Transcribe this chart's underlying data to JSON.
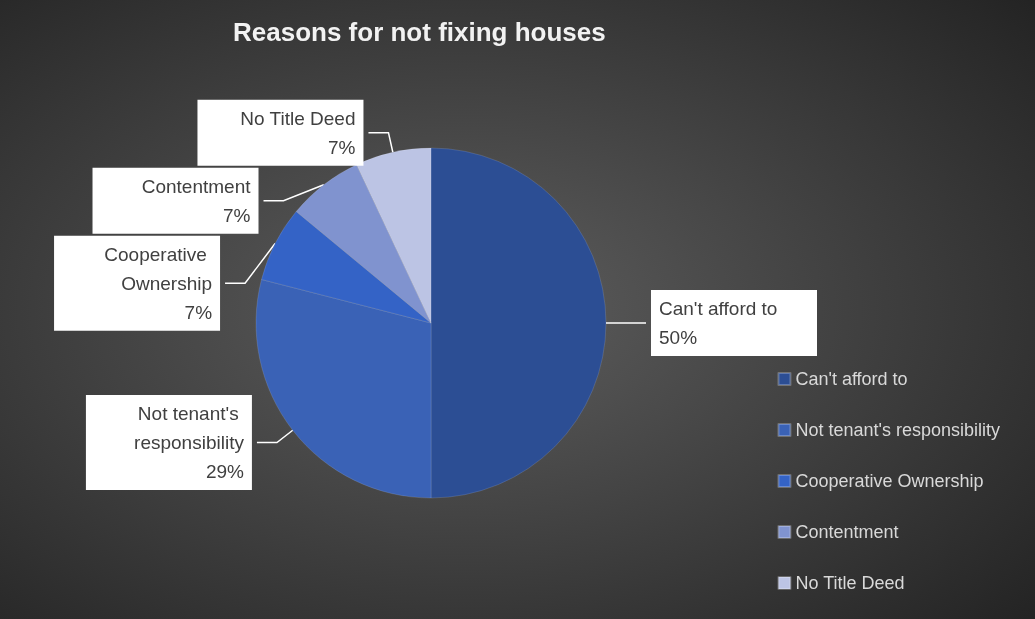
{
  "chart_data": {
    "type": "pie",
    "title": "Reasons for not fixing houses",
    "categories": [
      "Can't afford to",
      "Not tenant's responsibility",
      "Cooperative Ownership",
      "Contentment",
      "No Title Deed"
    ],
    "values": [
      50,
      29,
      7,
      7,
      7
    ],
    "colors": [
      "#2c4e94",
      "#3a62b6",
      "#3463c6",
      "#8093cf",
      "#bcc4e4"
    ],
    "value_labels": [
      "50%",
      "29%",
      "7%",
      "7%",
      "7%"
    ],
    "legend": "right"
  }
}
